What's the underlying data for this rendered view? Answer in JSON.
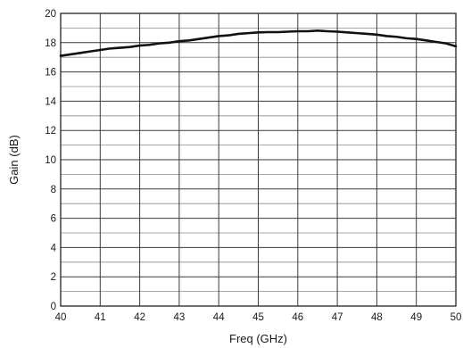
{
  "chart_data": {
    "type": "line",
    "title": "",
    "xlabel": "Freq (GHz)",
    "ylabel": "Gain (dB)",
    "xlim": [
      40,
      50
    ],
    "ylim": [
      0,
      20
    ],
    "x_ticks": [
      40,
      41,
      42,
      43,
      44,
      45,
      46,
      47,
      48,
      49,
      50
    ],
    "y_ticks": [
      0,
      2,
      4,
      6,
      8,
      10,
      12,
      14,
      16,
      18,
      20
    ],
    "grid": true,
    "minor_grid": true,
    "series": [
      {
        "x": [
          40,
          40.25,
          40.5,
          40.75,
          41,
          41.25,
          41.5,
          41.75,
          42,
          42.25,
          42.5,
          42.75,
          43,
          43.25,
          43.5,
          43.75,
          44,
          44.25,
          44.5,
          44.75,
          45,
          45.25,
          45.5,
          45.75,
          46,
          46.25,
          46.5,
          46.75,
          47,
          47.25,
          47.5,
          47.75,
          48,
          48.25,
          48.5,
          48.75,
          49,
          49.25,
          49.5,
          49.75,
          50
        ],
        "y": [
          17.1,
          17.2,
          17.3,
          17.4,
          17.5,
          17.6,
          17.65,
          17.7,
          17.8,
          17.85,
          17.95,
          18.0,
          18.1,
          18.15,
          18.25,
          18.35,
          18.45,
          18.5,
          18.6,
          18.65,
          18.7,
          18.72,
          18.72,
          18.75,
          18.78,
          18.78,
          18.82,
          18.78,
          18.75,
          18.7,
          18.65,
          18.6,
          18.55,
          18.45,
          18.4,
          18.3,
          18.25,
          18.15,
          18.05,
          17.95,
          17.75
        ],
        "color": "#111111"
      }
    ]
  }
}
